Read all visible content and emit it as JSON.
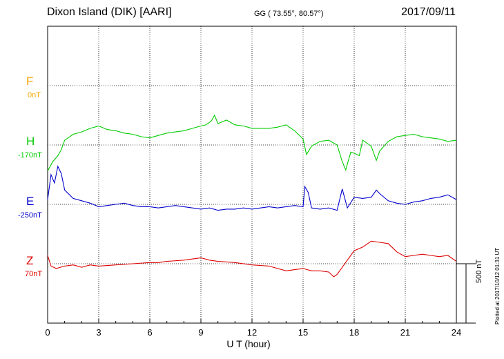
{
  "header": {
    "title": "Dixon Island (DIK)  [AARI]",
    "coords": "GG ( 73.55°,  80.57°)",
    "date": "2017/09/11"
  },
  "components": [
    {
      "letter": "F",
      "baseline": "0nT",
      "color": "#f5a500"
    },
    {
      "letter": "H",
      "baseline": "-170nT",
      "color": "#00cc00"
    },
    {
      "letter": "E",
      "baseline": "-250nT",
      "color": "#0000cc"
    },
    {
      "letter": "Z",
      "baseline": "70nT",
      "color": "#dd0000"
    }
  ],
  "scale": {
    "label": "500 nT",
    "value_nT": 500
  },
  "footer": {
    "plotted": "Plotted at 2017/10/12 01:31  UT"
  },
  "chart_data": {
    "type": "line",
    "xlabel": "U T (hour)",
    "xlim": [
      0,
      24
    ],
    "xticks": [
      0,
      3,
      6,
      9,
      12,
      15,
      18,
      21,
      24
    ],
    "series": [
      {
        "name": "H",
        "color": "#00cc00",
        "baseline_nT": -170,
        "x": [
          0,
          0.3,
          0.6,
          0.8,
          1,
          1.5,
          2,
          2.5,
          3,
          3.5,
          4,
          4.5,
          5,
          5.5,
          6,
          6.5,
          7,
          7.5,
          8,
          8.5,
          9,
          9.3,
          9.6,
          9.8,
          10,
          10.5,
          11,
          11.5,
          12,
          12.5,
          13,
          13.5,
          14,
          14.5,
          15,
          15.2,
          15.5,
          16,
          16.5,
          17,
          17.3,
          17.5,
          17.8,
          18,
          18.3,
          18.5,
          19,
          19.3,
          19.5,
          20,
          20.5,
          21,
          21.5,
          22,
          22.5,
          23,
          23.5,
          24
        ],
        "y": [
          -220,
          -140,
          -90,
          -40,
          40,
          90,
          110,
          140,
          160,
          130,
          120,
          100,
          90,
          70,
          60,
          80,
          100,
          110,
          120,
          140,
          160,
          170,
          200,
          250,
          180,
          210,
          170,
          160,
          140,
          140,
          140,
          150,
          170,
          120,
          50,
          -80,
          -10,
          30,
          40,
          0,
          -140,
          -210,
          -60,
          -70,
          -90,
          40,
          -10,
          -130,
          -50,
          30,
          70,
          80,
          90,
          70,
          60,
          50,
          30,
          40
        ]
      },
      {
        "name": "E",
        "color": "#0000cc",
        "baseline_nT": -250,
        "x": [
          0,
          0.2,
          0.4,
          0.6,
          0.8,
          1,
          1.5,
          2,
          2.5,
          3,
          3.5,
          4,
          4.5,
          5,
          5.5,
          6,
          6.5,
          7,
          7.5,
          8,
          8.5,
          9,
          9.5,
          10,
          10.5,
          11,
          11.5,
          12,
          12.5,
          13,
          13.5,
          14,
          14.5,
          15,
          15.1,
          15.3,
          15.5,
          16,
          16.5,
          17,
          17.3,
          17.6,
          18,
          18.5,
          19,
          19.3,
          19.5,
          20,
          20.5,
          21,
          21.5,
          22,
          22.5,
          23,
          23.5,
          24
        ],
        "y": [
          40,
          250,
          180,
          320,
          260,
          120,
          50,
          30,
          10,
          -20,
          -10,
          0,
          10,
          -10,
          -20,
          -20,
          -30,
          -20,
          -10,
          -20,
          -30,
          -40,
          -30,
          -50,
          -40,
          -40,
          -30,
          -40,
          -30,
          -20,
          -30,
          -20,
          -10,
          -20,
          150,
          100,
          -30,
          -40,
          -30,
          -50,
          130,
          -30,
          60,
          50,
          60,
          120,
          90,
          30,
          10,
          0,
          20,
          30,
          50,
          60,
          80,
          40
        ]
      },
      {
        "name": "Z",
        "color": "#dd0000",
        "baseline_nT": 70,
        "x": [
          0,
          0.2,
          0.5,
          1,
          1.5,
          2,
          2.5,
          3,
          4,
          5,
          6,
          6.5,
          7,
          8,
          9,
          9.5,
          10,
          11,
          12,
          13,
          13.5,
          14,
          14.5,
          15,
          15.5,
          16,
          16.5,
          16.8,
          17,
          17.3,
          17.6,
          18,
          18.5,
          19,
          19.5,
          20,
          20.5,
          21,
          21.5,
          22,
          22.5,
          23,
          23.5,
          24
        ],
        "y": [
          70,
          -20,
          -40,
          -20,
          -10,
          -30,
          -10,
          -20,
          -10,
          0,
          10,
          10,
          20,
          30,
          50,
          30,
          20,
          10,
          -10,
          -20,
          -40,
          -60,
          -50,
          -40,
          -60,
          -60,
          -70,
          -110,
          -90,
          -30,
          30,
          110,
          140,
          190,
          180,
          170,
          100,
          60,
          70,
          80,
          70,
          60,
          70,
          20
        ]
      }
    ]
  }
}
